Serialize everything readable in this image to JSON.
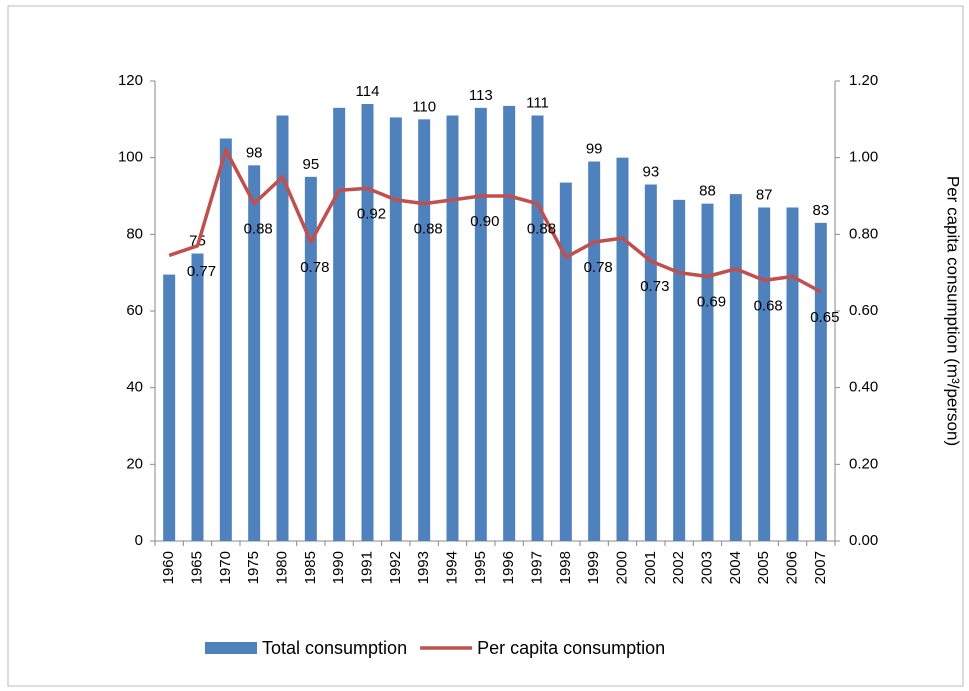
{
  "chart_data": {
    "type": "bar_line",
    "categories": [
      "1960",
      "1965",
      "1970",
      "1975",
      "1980",
      "1985",
      "1990",
      "1991",
      "1992",
      "1993",
      "1994",
      "1995",
      "1996",
      "1997",
      "1998",
      "1999",
      "2000",
      "2001",
      "2002",
      "2003",
      "2004",
      "2005",
      "2006",
      "2007"
    ],
    "series": [
      {
        "name": "Total consumption",
        "color": "#4f81bd",
        "type": "bar",
        "values": [
          69.5,
          75,
          105,
          98,
          111,
          95,
          113,
          114,
          110.5,
          110,
          111,
          113,
          113.5,
          111,
          93.5,
          99,
          100,
          93,
          89,
          88,
          90.5,
          87,
          87,
          83
        ],
        "value_labels": [
          null,
          "75",
          null,
          "98",
          null,
          "95",
          null,
          "114",
          null,
          "110",
          null,
          "113",
          null,
          "111",
          null,
          "99",
          null,
          "93",
          null,
          "88",
          null,
          "87",
          null,
          "83"
        ]
      },
      {
        "name": "Per capita consumption",
        "color": "#c0504d",
        "type": "line",
        "axis": "y2",
        "values": [
          0.745,
          0.77,
          1.02,
          0.88,
          0.95,
          0.78,
          0.915,
          0.92,
          0.89,
          0.88,
          0.89,
          0.9,
          0.9,
          0.88,
          0.74,
          0.78,
          0.79,
          0.73,
          0.7,
          0.69,
          0.71,
          0.68,
          0.69,
          0.65
        ],
        "value_labels": [
          null,
          "0.77",
          null,
          "0.88",
          null,
          "0.78",
          null,
          "0.92",
          null,
          "0.88",
          null,
          "0.90",
          null,
          "0.88",
          null,
          "0.78",
          null,
          "0.73",
          null,
          "0.69",
          null,
          "0.68",
          null,
          "0.65"
        ]
      }
    ],
    "ylim": [
      0,
      120
    ],
    "yticks": [
      0,
      20,
      40,
      60,
      80,
      100,
      120
    ],
    "y2lim": [
      0,
      1.2
    ],
    "y2ticks": [
      {
        "value": 0,
        "label": "0.00"
      },
      {
        "value": 0.2,
        "label": "0.20"
      },
      {
        "value": 0.4,
        "label": "0.40"
      },
      {
        "value": 0.6,
        "label": "0.60"
      },
      {
        "value": 0.8,
        "label": "0.80"
      },
      {
        "value": 1.0,
        "label": "1.00"
      },
      {
        "value": 1.2,
        "label": "1.20"
      }
    ],
    "y2label": "Per capita consumption (m³/person)",
    "legend": "bottom"
  }
}
